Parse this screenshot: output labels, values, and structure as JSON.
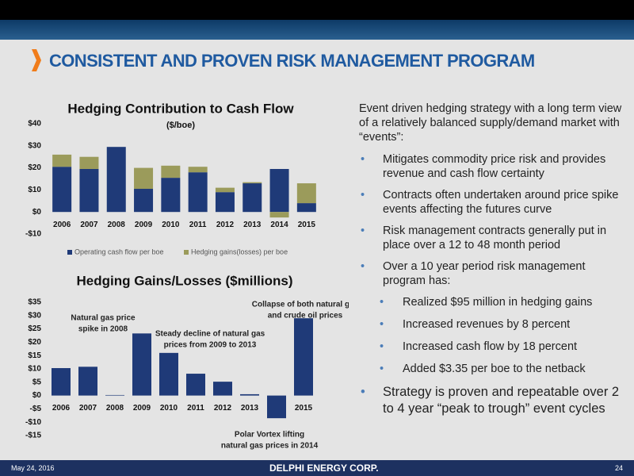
{
  "header": {
    "title": "CONSISTENT AND PROVEN RISK MANAGEMENT PROGRAM"
  },
  "chart_data": [
    {
      "type": "bar",
      "title": "Hedging Contribution to Cash Flow",
      "subtitle": "($/boe)",
      "categories": [
        "2006",
        "2007",
        "2008",
        "2009",
        "2010",
        "2011",
        "2012",
        "2013",
        "2014",
        "2015"
      ],
      "series": [
        {
          "name": "Operating cash flow per boe",
          "color": "#1f3a78",
          "values": [
            20.5,
            19.5,
            29.5,
            10.5,
            15.5,
            18,
            9,
            13,
            19.5,
            4
          ]
        },
        {
          "name": "Hedging gains(losses) per boe",
          "color": "#9b9b5b",
          "values": [
            5.5,
            5.5,
            0,
            9.5,
            5.5,
            2.5,
            2,
            0.5,
            -2.5,
            9
          ]
        }
      ],
      "stacked": true,
      "ylim": [
        -10,
        40
      ],
      "yticks": [
        {
          "value": -10,
          "label": "-$10"
        },
        {
          "value": 0,
          "label": "$0"
        },
        {
          "value": 10,
          "label": "$10"
        },
        {
          "value": 20,
          "label": "$20"
        },
        {
          "value": 30,
          "label": "$30"
        },
        {
          "value": 40,
          "label": "$40"
        }
      ],
      "legend": "bottom"
    },
    {
      "type": "bar",
      "title": "Hedging Gains/Losses ($millions)",
      "categories": [
        "2006",
        "2007",
        "2008",
        "2009",
        "2010",
        "2011",
        "2012",
        "2013",
        "2014",
        "2015"
      ],
      "values": [
        10.3,
        10.8,
        0.2,
        23.3,
        16,
        8.2,
        5.2,
        0.5,
        -8.5,
        29
      ],
      "color": "#1f3a78",
      "ylim": [
        -15,
        35
      ],
      "yticks": [
        {
          "value": -15,
          "label": "-$15"
        },
        {
          "value": -10,
          "label": "-$10"
        },
        {
          "value": -5,
          "label": "-$5"
        },
        {
          "value": 0,
          "label": "$0"
        },
        {
          "value": 5,
          "label": "$5"
        },
        {
          "value": 10,
          "label": "$10"
        },
        {
          "value": 15,
          "label": "$15"
        },
        {
          "value": 20,
          "label": "$20"
        },
        {
          "value": 25,
          "label": "$25"
        },
        {
          "value": 30,
          "label": "$30"
        },
        {
          "value": 35,
          "label": "$35"
        }
      ],
      "annotations": [
        [
          "Natural gas price",
          "spike in 2008"
        ],
        [
          "Steady decline of natural gas",
          "prices from 2009 to 2013"
        ],
        [
          "Collapse of both natural gas",
          "and crude oil prices"
        ],
        [
          "Polar Vortex lifting",
          "natural gas prices in 2014"
        ]
      ]
    }
  ],
  "body": {
    "intro": "Event driven hedging strategy with a long term view of a relatively balanced supply/demand market with “events”:",
    "bullets": [
      "Mitigates commodity price risk and provides revenue and cash flow certainty",
      "Contracts often undertaken around price spike events affecting the futures curve",
      "Risk management contracts generally put in place over a 12 to 48 month period",
      "Over a 10 year period risk management program has:"
    ],
    "sub_bullets": [
      "Realized $95 million in hedging gains",
      "Increased revenues by 8 percent",
      "Increased cash flow by 18 percent",
      "Added $3.35 per boe to the netback"
    ],
    "closing": "Strategy is proven and repeatable over 2 to 4 year “peak to trough” event cycles"
  },
  "footer": {
    "date": "May 24, 2016",
    "company": "DELPHI ENERGY CORP.",
    "page": "24"
  }
}
